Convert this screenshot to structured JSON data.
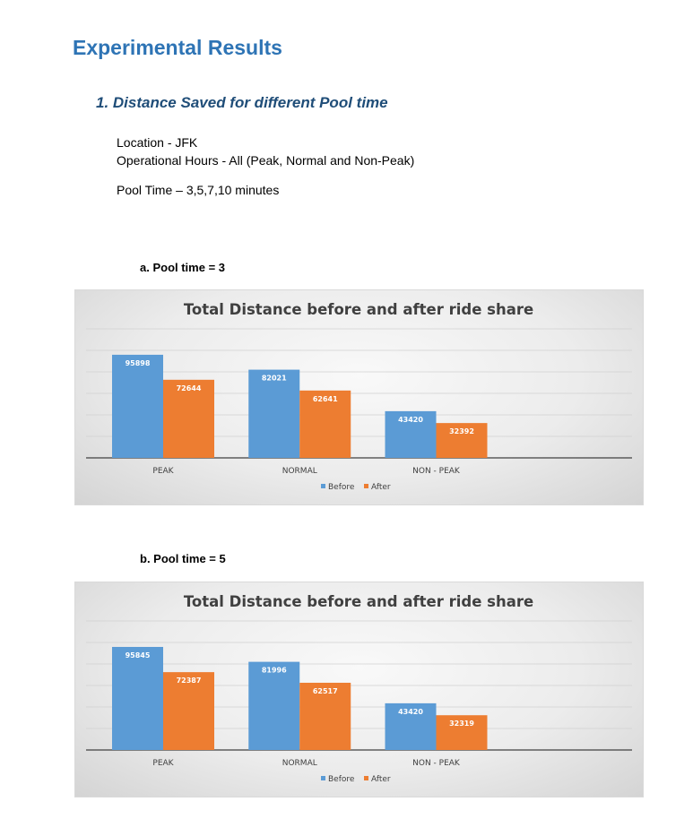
{
  "heading": "Experimental Results",
  "section_title": "1.  Distance Saved for different Pool time",
  "info": {
    "location": "Location - JFK",
    "hours": "Operational Hours - All (Peak, Normal and Non-Peak)",
    "pool_time": "Pool Time – 3,5,7,10 minutes"
  },
  "subsections": [
    {
      "label": "a.   Pool time = 3"
    },
    {
      "label": "b.   Pool time = 5"
    }
  ],
  "colors": {
    "before": "#5b9bd5",
    "after": "#ed7d31",
    "heading": "#2e74b5",
    "section": "#1f4d78"
  },
  "chart_data": [
    {
      "type": "bar",
      "title": "Total Distance before and after ride share",
      "categories": [
        "PEAK",
        "NORMAL",
        "NON - PEAK"
      ],
      "series": [
        {
          "name": "Before",
          "values": [
            95898,
            82021,
            43420
          ]
        },
        {
          "name": "After",
          "values": [
            72644,
            62641,
            32392
          ]
        }
      ],
      "ylim": [
        0,
        120000
      ],
      "grid": true,
      "legend": "bottom"
    },
    {
      "type": "bar",
      "title": "Total Distance before and after ride share",
      "categories": [
        "PEAK",
        "NORMAL",
        "NON - PEAK"
      ],
      "series": [
        {
          "name": "Before",
          "values": [
            95845,
            81996,
            43420
          ]
        },
        {
          "name": "After",
          "values": [
            72387,
            62517,
            32319
          ]
        }
      ],
      "ylim": [
        0,
        120000
      ],
      "grid": true,
      "legend": "bottom"
    }
  ]
}
